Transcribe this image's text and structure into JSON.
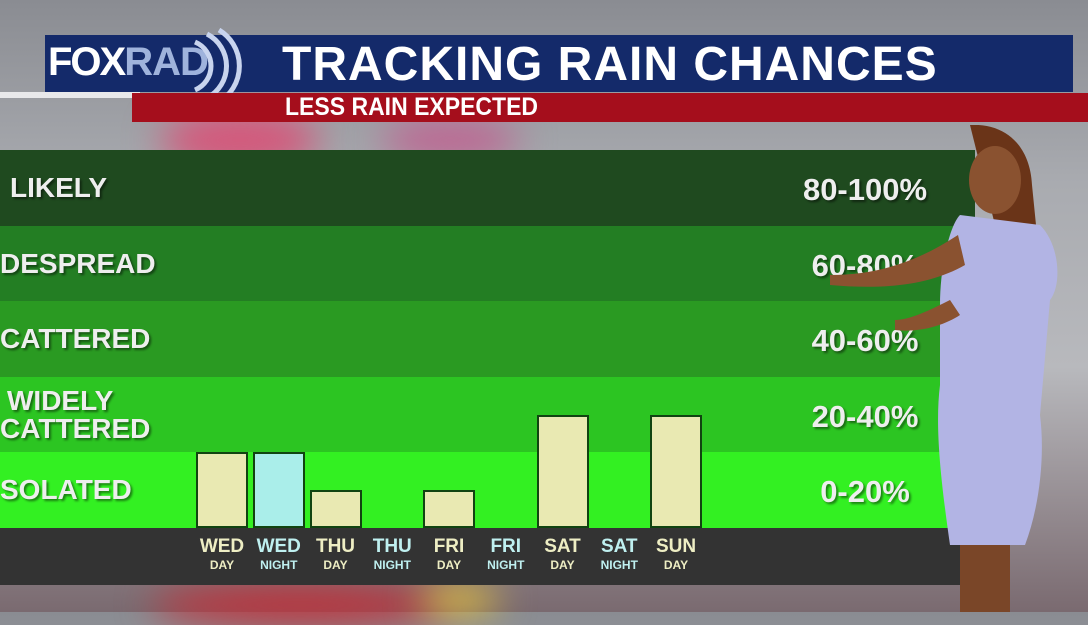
{
  "header": {
    "logo": "FOXRAD",
    "logo_fox": "FOX",
    "logo_rad": "RAD",
    "title": "TRACKING RAIN CHANCES",
    "subtitle": "LESS RAIN EXPECTED"
  },
  "colors": {
    "header_bg": "#142a6a",
    "subtitle_bg": "#a50e1c",
    "day_bar": "#e9e9b2",
    "night_bar": "#aaeeea",
    "bands": [
      "#1f4a1f",
      "#237e23",
      "#2a9a22",
      "#2cc522",
      "#33f022"
    ]
  },
  "chart_data": {
    "type": "bar",
    "categories": [
      "WED DAY",
      "WED NIGHT",
      "THU DAY",
      "THU NIGHT",
      "FRI DAY",
      "FRI NIGHT",
      "SAT DAY",
      "SAT NIGHT",
      "SUN DAY"
    ],
    "ticks": [
      {
        "day": "WED",
        "period": "DAY"
      },
      {
        "day": "WED",
        "period": "NIGHT"
      },
      {
        "day": "THU",
        "period": "DAY"
      },
      {
        "day": "THU",
        "period": "NIGHT"
      },
      {
        "day": "FRI",
        "period": "DAY"
      },
      {
        "day": "FRI",
        "period": "NIGHT"
      },
      {
        "day": "SAT",
        "period": "DAY"
      },
      {
        "day": "SAT",
        "period": "NIGHT"
      },
      {
        "day": "SUN",
        "period": "DAY"
      }
    ],
    "values": [
      20,
      20,
      10,
      0,
      10,
      0,
      30,
      0,
      30
    ],
    "ylim": [
      0,
      100
    ],
    "bands": [
      {
        "label": "LIKELY",
        "range": "80-100%"
      },
      {
        "label": "DESPREAD",
        "range": "60-80%"
      },
      {
        "label": "CATTERED",
        "range": "40-60%"
      },
      {
        "label": "WIDELY\nCATTERED",
        "label_1": "WIDELY",
        "label_2": "CATTERED",
        "range": "20-40%"
      },
      {
        "label": "SOLATED",
        "range": "0-20%"
      }
    ]
  }
}
